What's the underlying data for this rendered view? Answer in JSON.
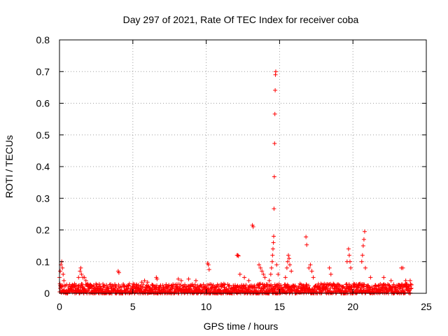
{
  "chart_data": {
    "type": "scatter",
    "title": "Day 297 of 2021, Rate Of TEC Index for receiver coba",
    "xlabel": "GPS time / hours",
    "ylabel": "ROTI / TECUs",
    "xlim": [
      0,
      25
    ],
    "ylim": [
      0,
      0.8
    ],
    "x_ticks": [
      0,
      5,
      10,
      15,
      20,
      25
    ],
    "x_tick_labels": [
      "0",
      "5",
      "10",
      "15",
      "20",
      "25"
    ],
    "y_ticks": [
      0,
      0.1,
      0.2,
      0.3,
      0.4,
      0.5,
      0.6,
      0.7,
      0.8
    ],
    "y_tick_labels": [
      "0",
      "0.1",
      "0.2",
      "0.3",
      "0.4",
      "0.5",
      "0.6",
      "0.7",
      "0.8"
    ],
    "grid": true,
    "marker": "+",
    "marker_color": "#ff0000",
    "baseline_noise": {
      "x_range": [
        0,
        24
      ],
      "y_range": [
        0.0,
        0.03
      ]
    },
    "series": [
      {
        "name": "ROTI",
        "points": [
          [
            0.0,
            0.05
          ],
          [
            0.05,
            0.07
          ],
          [
            0.1,
            0.09
          ],
          [
            0.15,
            0.1
          ],
          [
            0.2,
            0.08
          ],
          [
            0.25,
            0.06
          ],
          [
            0.3,
            0.04
          ],
          [
            1.3,
            0.05
          ],
          [
            1.4,
            0.07
          ],
          [
            1.45,
            0.08
          ],
          [
            1.5,
            0.06
          ],
          [
            1.6,
            0.05
          ],
          [
            1.7,
            0.05
          ],
          [
            1.8,
            0.04
          ],
          [
            4.0,
            0.07
          ],
          [
            4.05,
            0.065
          ],
          [
            5.6,
            0.035
          ],
          [
            5.8,
            0.04
          ],
          [
            6.0,
            0.035
          ],
          [
            6.6,
            0.05
          ],
          [
            6.65,
            0.045
          ],
          [
            8.1,
            0.045
          ],
          [
            8.3,
            0.04
          ],
          [
            8.8,
            0.045
          ],
          [
            9.3,
            0.04
          ],
          [
            10.1,
            0.095
          ],
          [
            10.15,
            0.09
          ],
          [
            10.2,
            0.075
          ],
          [
            12.1,
            0.12
          ],
          [
            12.15,
            0.12
          ],
          [
            12.2,
            0.118
          ],
          [
            12.3,
            0.06
          ],
          [
            12.6,
            0.05
          ],
          [
            12.9,
            0.04
          ],
          [
            13.15,
            0.215
          ],
          [
            13.2,
            0.21
          ],
          [
            13.6,
            0.09
          ],
          [
            13.7,
            0.08
          ],
          [
            13.8,
            0.07
          ],
          [
            13.9,
            0.06
          ],
          [
            14.0,
            0.05
          ],
          [
            14.3,
            0.04
          ],
          [
            14.4,
            0.06
          ],
          [
            14.45,
            0.08
          ],
          [
            14.5,
            0.1
          ],
          [
            14.52,
            0.12
          ],
          [
            14.55,
            0.14
          ],
          [
            14.58,
            0.16
          ],
          [
            14.6,
            0.18
          ],
          [
            14.62,
            0.267
          ],
          [
            14.64,
            0.368
          ],
          [
            14.66,
            0.473
          ],
          [
            14.68,
            0.566
          ],
          [
            14.7,
            0.641
          ],
          [
            14.72,
            0.69
          ],
          [
            14.74,
            0.7
          ],
          [
            14.8,
            0.09
          ],
          [
            14.9,
            0.06
          ],
          [
            15.4,
            0.05
          ],
          [
            15.5,
            0.08
          ],
          [
            15.55,
            0.1
          ],
          [
            15.6,
            0.12
          ],
          [
            15.65,
            0.11
          ],
          [
            15.7,
            0.09
          ],
          [
            15.8,
            0.07
          ],
          [
            16.8,
            0.178
          ],
          [
            16.85,
            0.153
          ],
          [
            17.0,
            0.08
          ],
          [
            17.1,
            0.09
          ],
          [
            17.2,
            0.07
          ],
          [
            17.3,
            0.05
          ],
          [
            18.4,
            0.08
          ],
          [
            18.5,
            0.06
          ],
          [
            19.6,
            0.1
          ],
          [
            19.7,
            0.14
          ],
          [
            19.75,
            0.12
          ],
          [
            19.8,
            0.1
          ],
          [
            19.85,
            0.08
          ],
          [
            20.6,
            0.1
          ],
          [
            20.65,
            0.12
          ],
          [
            20.7,
            0.15
          ],
          [
            20.75,
            0.17
          ],
          [
            20.8,
            0.195
          ],
          [
            20.85,
            0.08
          ],
          [
            21.2,
            0.05
          ],
          [
            22.1,
            0.05
          ],
          [
            22.6,
            0.04
          ],
          [
            23.3,
            0.08
          ],
          [
            23.4,
            0.08
          ],
          [
            23.6,
            0.04
          ],
          [
            23.9,
            0.04
          ]
        ]
      }
    ]
  }
}
